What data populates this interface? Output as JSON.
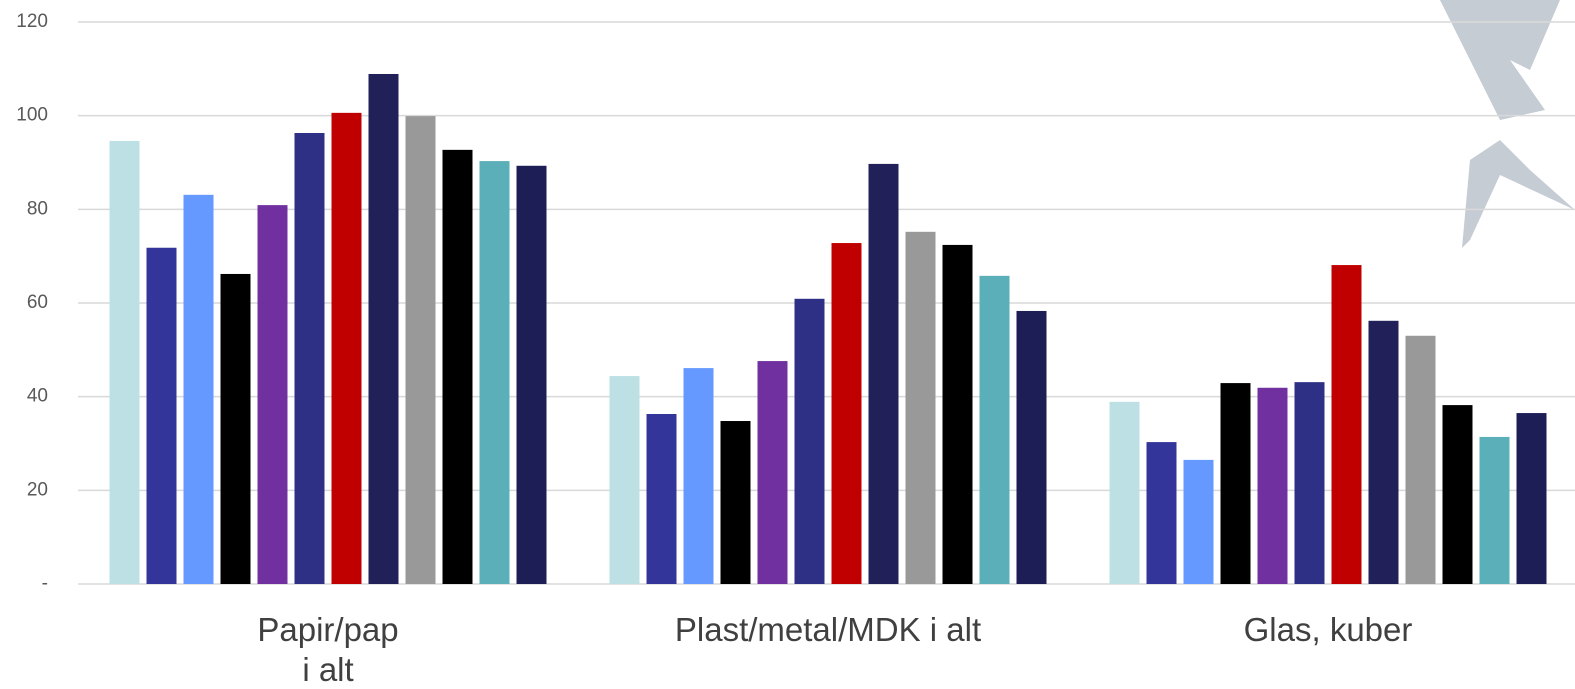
{
  "chart_data": {
    "type": "bar",
    "categories": [
      "Papir/pap\ni alt",
      "Plast/metal/MDK i alt",
      "Glas, kuber"
    ],
    "series": [
      {
        "color": "#bde0e4",
        "values": [
          94.6,
          44.4,
          38.9
        ]
      },
      {
        "color": "#34359a",
        "values": [
          71.8,
          36.3,
          30.3
        ]
      },
      {
        "color": "#6699ff",
        "values": [
          83.1,
          46.1,
          26.5
        ]
      },
      {
        "color": "#000000",
        "values": [
          66.2,
          34.8,
          42.9
        ]
      },
      {
        "color": "#7030a0",
        "values": [
          80.9,
          47.6,
          41.9
        ]
      },
      {
        "color": "#2e3086",
        "values": [
          96.3,
          60.9,
          43.1
        ]
      },
      {
        "color": "#c00000",
        "values": [
          100.6,
          72.8,
          68.1
        ]
      },
      {
        "color": "#222059",
        "values": [
          108.9,
          89.7,
          56.2
        ]
      },
      {
        "color": "#999999",
        "values": [
          99.9,
          75.2,
          53.0
        ]
      },
      {
        "color": "#000000",
        "values": [
          92.7,
          72.4,
          38.2
        ]
      },
      {
        "color": "#5aafb9",
        "values": [
          90.3,
          65.8,
          31.4
        ]
      },
      {
        "color": "#1e1e56",
        "values": [
          89.3,
          58.3,
          36.5
        ]
      }
    ],
    "ylim": [
      0,
      120
    ],
    "yticks": [
      {
        "value": 0,
        "label": "-"
      },
      20,
      40,
      60,
      80,
      100,
      120
    ],
    "grid": true
  }
}
